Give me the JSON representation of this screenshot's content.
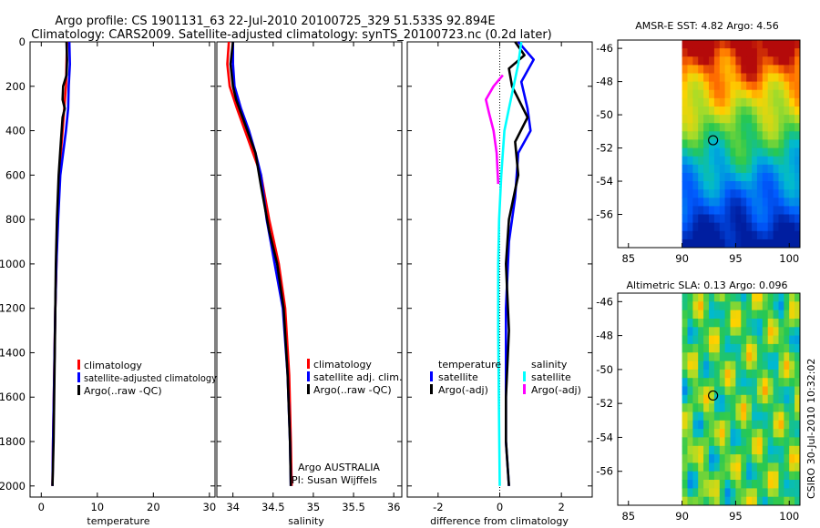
{
  "title": {
    "line1": "Argo profile: CS 1901131_63 22-Jul-2010 20100725_329 51.533S 92.894E",
    "line2": "Climatology: CARS2009. Satellite-adjusted climatology: synTS_20100723.nc (0.2d later)"
  },
  "colors": {
    "climatology": "#ff0000",
    "satellite": "#0000ff",
    "argo": "#000000",
    "sal_satellite": "#00ffff",
    "sal_argo": "#ff00ff"
  },
  "panels": {
    "temperature": {
      "xlabel": "temperature",
      "legend": [
        "climatology",
        "satellite-adjusted climatology",
        "Argo(..raw -QC)"
      ]
    },
    "salinity": {
      "xlabel": "salinity",
      "legend": [
        "climatology",
        "satellite adj. clim.",
        "Argo(..raw -QC)"
      ],
      "note1": "Argo AUSTRALIA",
      "note2": "PI: Susan Wijffels"
    },
    "difference": {
      "xlabel": "difference from climatology",
      "temp_header": "temperature",
      "sal_header": "salinity",
      "legend_temp": [
        "satellite",
        "Argo(-adj)"
      ],
      "legend_sal": [
        "satellite",
        "Argo(-adj)"
      ]
    },
    "sst_map": {
      "title": "AMSR-E SST: 4.82 Argo: 4.56"
    },
    "sla_map": {
      "title": "Altimetric SLA: 0.13 Argo: 0.096"
    }
  },
  "footer": "CSIRO 30-Jul-2010 10:32:02",
  "chart_data": [
    {
      "type": "line",
      "name": "temperature",
      "xlabel": "temperature",
      "ylabel": "",
      "xlim": [
        -2,
        31
      ],
      "ylim": [
        2050,
        0
      ],
      "xticks": [
        0,
        10,
        20,
        30
      ],
      "yticks": [
        0,
        200,
        400,
        600,
        800,
        1000,
        1200,
        1400,
        1600,
        1800,
        2000
      ],
      "series": [
        {
          "name": "climatology",
          "color": "#ff0000",
          "x": [
            4.6,
            4.5,
            4.4,
            4.1,
            3.8,
            3.5,
            3.2,
            2.9,
            2.7,
            2.5,
            2.3,
            2.1,
            2.0
          ],
          "y": [
            0,
            100,
            200,
            300,
            400,
            500,
            600,
            800,
            1000,
            1200,
            1500,
            1800,
            2000
          ]
        },
        {
          "name": "satellite-adjusted climatology",
          "color": "#0000ff",
          "x": [
            5.0,
            5.1,
            4.9,
            4.8,
            4.4,
            3.9,
            3.4,
            3.0,
            2.7,
            2.5,
            2.3,
            2.1,
            2.0
          ],
          "y": [
            0,
            100,
            200,
            300,
            400,
            500,
            600,
            800,
            1000,
            1200,
            1500,
            1800,
            2000
          ]
        },
        {
          "name": "Argo(..raw -QC)",
          "color": "#000000",
          "x": [
            4.5,
            4.6,
            4.5,
            3.9,
            3.8,
            4.2,
            3.8,
            3.5,
            3.1,
            2.8,
            2.6,
            2.4,
            2.2,
            2.0
          ],
          "y": [
            0,
            80,
            150,
            200,
            260,
            300,
            340,
            450,
            600,
            800,
            1000,
            1400,
            1800,
            2000
          ]
        }
      ]
    },
    {
      "type": "line",
      "name": "salinity",
      "xlabel": "salinity",
      "ylabel": "",
      "xlim": [
        33.8,
        36.1
      ],
      "ylim": [
        2050,
        0
      ],
      "xticks": [
        34,
        34.5,
        35,
        35.5,
        36
      ],
      "series": [
        {
          "name": "climatology",
          "color": "#ff0000",
          "x": [
            33.95,
            33.93,
            33.96,
            34.05,
            34.15,
            34.25,
            34.35,
            34.45,
            34.57,
            34.65,
            34.7,
            34.72,
            34.73
          ],
          "y": [
            0,
            100,
            200,
            300,
            400,
            500,
            600,
            800,
            1000,
            1200,
            1500,
            1800,
            2000
          ]
        },
        {
          "name": "satellite adj. clim.",
          "color": "#0000ff",
          "x": [
            34.0,
            34.0,
            34.02,
            34.1,
            34.2,
            34.28,
            34.35,
            34.42,
            34.52,
            34.62,
            34.68,
            34.71,
            34.72
          ],
          "y": [
            0,
            100,
            200,
            300,
            400,
            500,
            600,
            800,
            1000,
            1200,
            1500,
            1800,
            2000
          ]
        },
        {
          "name": "Argo(..raw -QC)",
          "color": "#000000",
          "x": [
            34.0,
            33.97,
            34.0,
            34.04,
            34.1,
            34.18,
            34.28,
            34.35,
            34.45,
            34.55,
            34.63,
            34.68,
            34.71,
            34.72
          ],
          "y": [
            0,
            100,
            200,
            260,
            320,
            400,
            500,
            650,
            850,
            1000,
            1200,
            1500,
            1800,
            2000
          ]
        }
      ]
    },
    {
      "type": "line",
      "name": "difference",
      "xlabel": "difference from climatology",
      "ylabel": "",
      "xlim": [
        -3,
        3
      ],
      "ylim": [
        2050,
        0
      ],
      "xticks": [
        -2,
        0,
        2
      ],
      "series": [
        {
          "name": "temperature satellite",
          "color": "#0000ff",
          "x": [
            0.6,
            1.1,
            0.7,
            0.9,
            1.0,
            0.6,
            0.5,
            0.3,
            0.2,
            0.2,
            0.2,
            0.3
          ],
          "y": [
            0,
            80,
            180,
            300,
            400,
            500,
            700,
            900,
            1200,
            1500,
            1800,
            2000
          ]
        },
        {
          "name": "temperature Argo(-adj)",
          "color": "#000000",
          "x": [
            0.5,
            0.8,
            0.3,
            0.4,
            0.9,
            0.5,
            0.6,
            0.3,
            0.2,
            0.3,
            0.2,
            0.2,
            0.3
          ],
          "y": [
            0,
            60,
            120,
            200,
            340,
            450,
            600,
            800,
            1000,
            1300,
            1600,
            1800,
            2000
          ]
        },
        {
          "name": "salinity satellite",
          "color": "#00ffff",
          "x": [
            0.7,
            0.6,
            0.45,
            0.3,
            0.15,
            0.05,
            -0.02,
            -0.05,
            -0.05,
            -0.03,
            0.0
          ],
          "y": [
            0,
            100,
            200,
            300,
            400,
            600,
            800,
            1000,
            1300,
            1600,
            2000
          ]
        },
        {
          "name": "salinity Argo(-adj)",
          "color": "#ff00ff",
          "x": [
            0.1,
            -0.2,
            -0.45,
            -0.35,
            -0.2,
            -0.1,
            -0.05
          ],
          "y": [
            150,
            200,
            260,
            320,
            400,
            500,
            640
          ]
        }
      ]
    }
  ],
  "maps": [
    {
      "type": "heatmap",
      "name": "AMSR-E SST",
      "xlim": [
        84,
        101
      ],
      "ylim": [
        -58,
        -45.5
      ],
      "xticks": [
        85,
        90,
        95,
        100
      ],
      "yticks": [
        -46,
        -48,
        -50,
        -52,
        -54,
        -56
      ],
      "data_lon_range": [
        90,
        101
      ],
      "marker": {
        "lon": 92.894,
        "lat": -51.533
      }
    },
    {
      "type": "heatmap",
      "name": "Altimetric SLA",
      "xlim": [
        84,
        101
      ],
      "ylim": [
        -58,
        -45.5
      ],
      "xticks": [
        85,
        90,
        95,
        100
      ],
      "yticks": [
        -46,
        -48,
        -50,
        -52,
        -54,
        -56
      ],
      "data_lon_range": [
        90,
        101
      ],
      "marker": {
        "lon": 92.894,
        "lat": -51.533
      }
    }
  ]
}
